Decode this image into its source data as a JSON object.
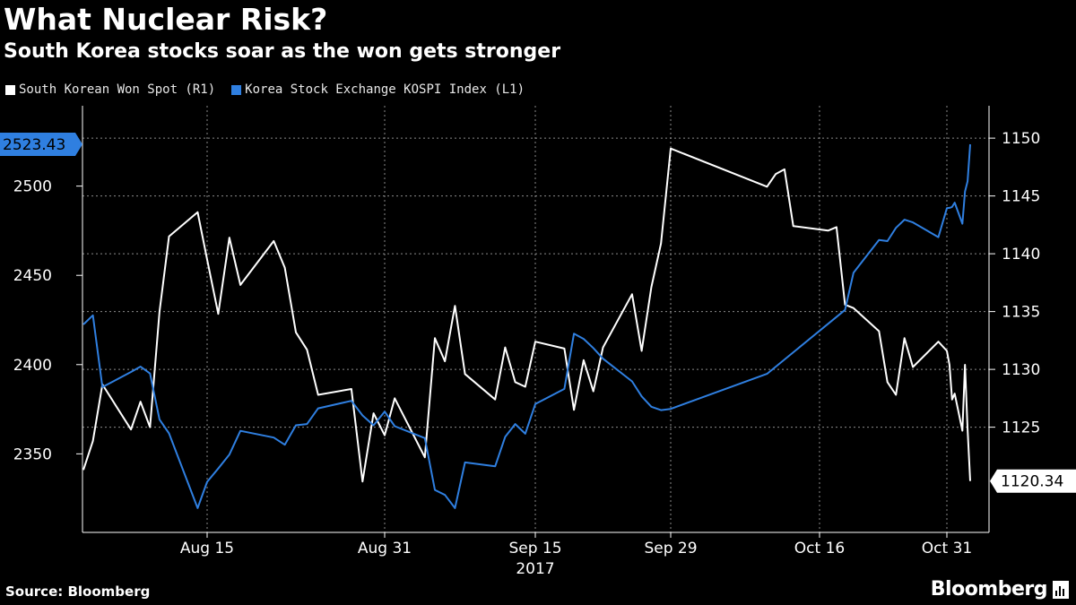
{
  "title": "What Nuclear Risk?",
  "subtitle": "South Korea stocks soar as the won gets stronger",
  "source": "Source: Bloomberg",
  "brand": "Bloomberg",
  "colors": {
    "won": "#ffffff",
    "kospi": "#2f7fe0",
    "grid": "#8a8a8a"
  },
  "chart_data": {
    "type": "line",
    "title": "What Nuclear Risk?",
    "subtitle": "South Korea stocks soar as the won gets stronger",
    "x_ticks": [
      "Aug 15",
      "Aug 31",
      "Sep 15",
      "Sep 29",
      "Oct 16",
      "Oct 31"
    ],
    "x_year_label": "2017",
    "y_left": {
      "ylim": [
        2306,
        2545
      ],
      "ticks": [
        "2350",
        "2400",
        "2450",
        "2500"
      ],
      "tick_values": [
        2350,
        2400,
        2450,
        2500
      ]
    },
    "y_right": {
      "ylim": [
        1115.9,
        1152.8
      ],
      "ticks": [
        "1125",
        "1130",
        "1135",
        "1140",
        "1145",
        "1150"
      ],
      "tick_values": [
        1125,
        1130,
        1135,
        1140,
        1145,
        1150
      ]
    },
    "grid": true,
    "legend_position": "top-left",
    "series": [
      {
        "name": "South Korean Won Spot (R1)",
        "axis": "right",
        "color": "#ffffff",
        "last_label": "1120.34",
        "points": [
          [
            "Aug 2",
            1121.3
          ],
          [
            "Aug 3",
            1123.8
          ],
          [
            "Aug 4",
            1128.7
          ],
          [
            "Aug 7",
            1124.8
          ],
          [
            "Aug 8",
            1127.2
          ],
          [
            "Aug 9",
            1125
          ],
          [
            "Aug 10",
            1135
          ],
          [
            "Aug 11",
            1141.5
          ],
          [
            "Aug 14",
            1143.6
          ],
          [
            "Aug 15",
            1139.5
          ],
          [
            "Aug 16",
            1134.8
          ],
          [
            "Aug 17",
            1141.4
          ],
          [
            "Aug 18",
            1137.3
          ],
          [
            "Aug 21",
            1141.1
          ],
          [
            "Aug 22",
            1138.8
          ],
          [
            "Aug 23",
            1133.2
          ],
          [
            "Aug 24",
            1131.7
          ],
          [
            "Aug 25",
            1127.8
          ],
          [
            "Aug 28",
            1128.3
          ],
          [
            "Aug 29",
            1120.3
          ],
          [
            "Aug 30",
            1126.2
          ],
          [
            "Aug 31",
            1124.3
          ],
          [
            "Sep 1",
            1127.5
          ],
          [
            "Sep 4",
            1122.4
          ],
          [
            "Sep 5",
            1132.7
          ],
          [
            "Sep 6",
            1130.7
          ],
          [
            "Sep 7",
            1135.5
          ],
          [
            "Sep 8",
            1129.6
          ],
          [
            "Sep 11",
            1127.4
          ],
          [
            "Sep 12",
            1131.9
          ],
          [
            "Sep 13",
            1128.9
          ],
          [
            "Sep 14",
            1128.5
          ],
          [
            "Sep 15",
            1132.4
          ],
          [
            "Sep 18",
            1131.8
          ],
          [
            "Sep 19",
            1126.5
          ],
          [
            "Sep 20",
            1130.8
          ],
          [
            "Sep 21",
            1128.1
          ],
          [
            "Sep 22",
            1131.9
          ],
          [
            "Sep 25",
            1136.5
          ],
          [
            "Sep 26",
            1131.6
          ],
          [
            "Sep 27",
            1137.1
          ],
          [
            "Sep 28",
            1140.9
          ],
          [
            "Sep 29",
            1149.1
          ],
          [
            "Oct 10",
            1145.8
          ],
          [
            "Oct 11",
            1146.9
          ],
          [
            "Oct 12",
            1147.3
          ],
          [
            "Oct 13",
            1142.4
          ],
          [
            "Oct 16",
            1142.1
          ],
          [
            "Oct 17",
            1142
          ],
          [
            "Oct 18",
            1142.3
          ],
          [
            "Oct 19",
            1135.6
          ],
          [
            "Oct 20",
            1135.3
          ],
          [
            "Oct 23",
            1133.3
          ],
          [
            "Oct 24",
            1128.9
          ],
          [
            "Oct 25",
            1127.8
          ],
          [
            "Oct 26",
            1132.7
          ],
          [
            "Oct 27",
            1130.2
          ],
          [
            "Oct 30",
            1132.4
          ],
          [
            "Oct 31",
            1131.6
          ],
          [
            "Nov 1",
            1130.4
          ],
          [
            "Nov 2",
            1127.4
          ],
          [
            "Nov 3",
            1127.9
          ],
          [
            "Nov 6",
            1124.7
          ],
          [
            "Nov 7",
            1130.4
          ],
          [
            "Nov 8",
            1124.8
          ],
          [
            "Nov 9",
            1120.34
          ]
        ]
      },
      {
        "name": "Korea Stock Exchange KOSPI Index (L1)",
        "axis": "left",
        "color": "#2f7fe0",
        "last_label": "2523.43",
        "points": [
          [
            "Aug 2",
            2422.5
          ],
          [
            "Aug 3",
            2427.6
          ],
          [
            "Aug 4",
            2387.4
          ],
          [
            "Aug 7",
            2395.9
          ],
          [
            "Aug 8",
            2398.9
          ],
          [
            "Aug 9",
            2395
          ],
          [
            "Aug 10",
            2369.2
          ],
          [
            "Aug 11",
            2361.5
          ],
          [
            "Aug 14",
            2319.6
          ],
          [
            "Aug 15",
            2334.3
          ],
          [
            "Aug 16",
            2341.8
          ],
          [
            "Aug 17",
            2349.6
          ],
          [
            "Aug 18",
            2362.9
          ],
          [
            "Aug 21",
            2359.1
          ],
          [
            "Aug 22",
            2355.1
          ],
          [
            "Aug 23",
            2366
          ],
          [
            "Aug 24",
            2366.7
          ],
          [
            "Aug 25",
            2375.5
          ],
          [
            "Aug 28",
            2379.7
          ],
          [
            "Aug 29",
            2371.5
          ],
          [
            "Aug 30",
            2366
          ],
          [
            "Aug 31",
            2373.7
          ],
          [
            "Sep 1",
            2365.5
          ],
          [
            "Sep 4",
            2358.8
          ],
          [
            "Sep 5",
            2329.8
          ],
          [
            "Sep 6",
            2327
          ],
          [
            "Sep 7",
            2319.6
          ],
          [
            "Sep 8",
            2345.2
          ],
          [
            "Sep 11",
            2343
          ],
          [
            "Sep 12",
            2359.5
          ],
          [
            "Sep 13",
            2366.7
          ],
          [
            "Sep 14",
            2361.3
          ],
          [
            "Sep 15",
            2377.9
          ],
          [
            "Sep 18",
            2386.4
          ],
          [
            "Sep 19",
            2417.3
          ],
          [
            "Sep 20",
            2414.4
          ],
          [
            "Sep 21",
            2409.3
          ],
          [
            "Sep 22",
            2403.3
          ],
          [
            "Sep 25",
            2390.6
          ],
          [
            "Sep 26",
            2382.2
          ],
          [
            "Sep 27",
            2376.4
          ],
          [
            "Sep 28",
            2374.5
          ],
          [
            "Sep 29",
            2375.2
          ],
          [
            "Oct 10",
            2394.8
          ],
          [
            "Oct 19",
            2430.6
          ],
          [
            "Oct 20",
            2451.5
          ],
          [
            "Oct 23",
            2469.8
          ],
          [
            "Oct 24",
            2469.2
          ],
          [
            "Oct 25",
            2476.6
          ],
          [
            "Oct 26",
            2481.2
          ],
          [
            "Oct 27",
            2479.7
          ],
          [
            "Oct 30",
            2471.4
          ],
          [
            "Oct 31",
            2487.6
          ],
          [
            "Nov 1",
            2487.8
          ],
          [
            "Nov 2",
            2488.3
          ],
          [
            "Nov 3",
            2490.7
          ],
          [
            "Nov 6",
            2478.9
          ],
          [
            "Nov 7",
            2496.9
          ],
          [
            "Nov 8",
            2502.7
          ],
          [
            "Nov 9",
            2523.43
          ]
        ]
      }
    ]
  }
}
